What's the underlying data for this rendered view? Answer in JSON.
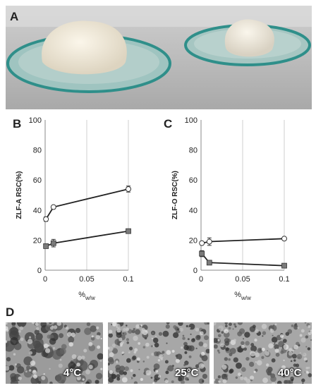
{
  "panels": {
    "a": {
      "letter": "A"
    },
    "b": {
      "letter": "B"
    },
    "c": {
      "letter": "C"
    },
    "d": {
      "letter": "D"
    }
  },
  "micrographs": [
    {
      "temp": "4°C"
    },
    {
      "temp": "25°C"
    },
    {
      "temp": "40°C"
    }
  ],
  "colors": {
    "open_marker_fill": "#ffffff",
    "filled_marker_fill": "#7a7a7a",
    "line": "#222222",
    "grid": "#cfcfcf"
  },
  "chart_data": [
    {
      "panel": "B",
      "type": "line",
      "ylabel": "ZLF-A RSC(%)",
      "xlabel_main": "%",
      "xlabel_sub": "w/w",
      "xlim": [
        0,
        0.1
      ],
      "ylim": [
        0,
        100
      ],
      "xticks": [
        "0",
        "0.05",
        "0.1"
      ],
      "yticks": [
        "0",
        "20",
        "40",
        "60",
        "80",
        "100"
      ],
      "grid": "vertical",
      "series": [
        {
          "marker": "open-circle",
          "x": [
            0.001,
            0.01,
            0.1
          ],
          "y": [
            34,
            42,
            54
          ],
          "err": [
            1.5,
            1,
            2
          ]
        },
        {
          "marker": "filled-square",
          "x": [
            0.001,
            0.01,
            0.1
          ],
          "y": [
            16,
            18,
            26
          ],
          "err": [
            1,
            2.5,
            1
          ]
        }
      ]
    },
    {
      "panel": "C",
      "type": "line",
      "ylabel": "ZLF-O RSC(%)",
      "xlabel_main": "%",
      "xlabel_sub": "w/w",
      "xlim": [
        0,
        0.1
      ],
      "ylim": [
        0,
        100
      ],
      "xticks": [
        "0",
        "0.05",
        "0.1"
      ],
      "yticks": [
        "0",
        "20",
        "40",
        "60",
        "80",
        "100"
      ],
      "grid": "vertical",
      "series": [
        {
          "marker": "open-circle",
          "x": [
            0.001,
            0.01,
            0.1
          ],
          "y": [
            18,
            19,
            21
          ],
          "err": [
            1,
            2.5,
            1
          ]
        },
        {
          "marker": "filled-square",
          "x": [
            0.001,
            0.01,
            0.1
          ],
          "y": [
            11,
            5,
            3
          ],
          "err": [
            2,
            1,
            0.5
          ]
        }
      ]
    }
  ]
}
